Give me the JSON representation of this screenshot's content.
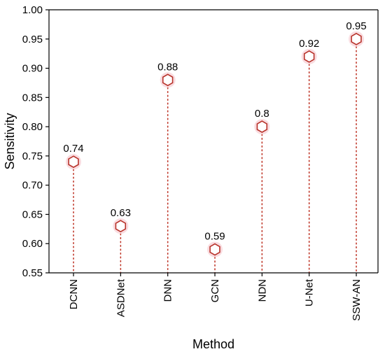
{
  "chart_data": {
    "type": "scatter",
    "style": "lollipop",
    "categories": [
      "DCNN",
      "ASDNet",
      "DNN",
      "GCN",
      "NDN",
      "U-Net",
      "SSW-AN"
    ],
    "values": [
      0.74,
      0.63,
      0.88,
      0.59,
      0.8,
      0.92,
      0.95
    ],
    "data_labels": [
      "0.74",
      "0.63",
      "0.88",
      "0.59",
      "0.8",
      "0.92",
      "0.95"
    ],
    "xlabel": "Method",
    "ylabel": "Sensitivity",
    "ylim": [
      0.55,
      1.0
    ],
    "yticks": [
      "0.55",
      "0.60",
      "0.65",
      "0.70",
      "0.75",
      "0.80",
      "0.85",
      "0.90",
      "0.95",
      "1.00"
    ],
    "grid": false,
    "marker": "hexagon",
    "colors": {
      "marker_stroke": "#b8322a",
      "marker_glow": "#f6c9cf",
      "stem": "#c0392b",
      "axis": "#000000"
    }
  }
}
